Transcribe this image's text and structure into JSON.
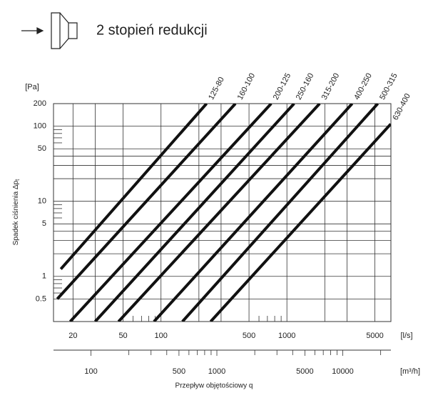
{
  "chart_data": {
    "type": "line",
    "title": "2 stopień redukcji",
    "ylabel": "Spadek ciśnienia Δp",
    "ylabel_subscript": "t",
    "yunit": "[Pa]",
    "xunit": "[l/s]",
    "x2unit": "[m³/h]",
    "xlabel": "Przepływ objętościowy q",
    "xscale": "log",
    "yscale": "log",
    "xlim": [
      14,
      6700
    ],
    "ylim": [
      0.25,
      200
    ],
    "x2lim": [
      50.4,
      24120
    ],
    "xticks": [
      20,
      50,
      100,
      500,
      1000,
      5000
    ],
    "xminorticks": [
      60,
      70,
      80,
      90,
      600,
      700,
      800,
      900
    ],
    "xgrid": [
      30,
      200,
      300,
      2000,
      3000
    ],
    "yticks": [
      200,
      100,
      50,
      10,
      5,
      1,
      0.5
    ],
    "ygrid": [
      40,
      30,
      20,
      4,
      3,
      2
    ],
    "yminorticks": [
      90,
      80,
      70,
      60,
      9,
      8,
      7,
      6,
      0.9,
      0.8,
      0.7,
      0.6
    ],
    "x2ticks": [
      100,
      500,
      1000,
      5000,
      10000
    ],
    "x2minorticks": [
      200,
      300,
      400,
      600,
      700,
      800,
      900,
      2000,
      3000,
      4000,
      6000,
      7000,
      8000,
      9000,
      20000
    ],
    "grid": true,
    "series": [
      {
        "name": "125-80",
        "color": "#111111",
        "x": [
          16,
          230
        ],
        "values": [
          1.25,
          200
        ]
      },
      {
        "name": "160-100",
        "color": "#111111",
        "x": [
          15,
          390
        ],
        "values": [
          0.5,
          200
        ]
      },
      {
        "name": "200-125",
        "color": "#111111",
        "x": [
          19,
          750
        ],
        "values": [
          0.25,
          200
        ]
      },
      {
        "name": "250-160",
        "color": "#111111",
        "x": [
          30,
          1140
        ],
        "values": [
          0.25,
          200
        ]
      },
      {
        "name": "315-200",
        "color": "#111111",
        "x": [
          46,
          1820
        ],
        "values": [
          0.25,
          200
        ]
      },
      {
        "name": "400-250",
        "color": "#111111",
        "x": [
          88,
          3300
        ],
        "values": [
          0.25,
          200
        ]
      },
      {
        "name": "500-315",
        "color": "#111111",
        "x": [
          148,
          5270
        ],
        "values": [
          0.25,
          200
        ]
      },
      {
        "name": "630-400",
        "color": "#111111",
        "x": [
          248,
          6680
        ],
        "values": [
          0.25,
          107
        ]
      }
    ]
  }
}
